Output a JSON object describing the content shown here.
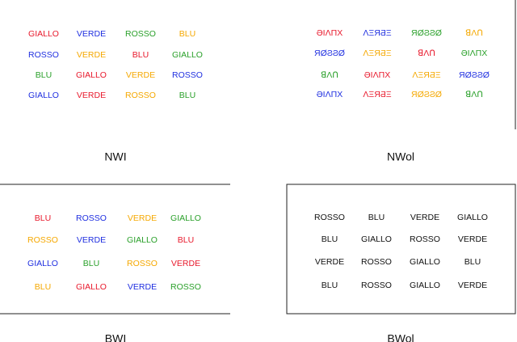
{
  "panels": [
    {
      "label": "NWI",
      "words": [
        [
          {
            "text": "GIALLO",
            "color": "#e8192c"
          },
          {
            "text": "VERDE",
            "color": "#1f2fe0"
          },
          {
            "text": "ROSSO",
            "color": "#2aa02a"
          },
          {
            "text": "BLU",
            "color": "#f5a800"
          }
        ],
        [
          {
            "text": "ROSSO",
            "color": "#1f2fe0"
          },
          {
            "text": "VERDE",
            "color": "#f5a800"
          },
          {
            "text": "BLU",
            "color": "#e8192c"
          },
          {
            "text": "GIALLO",
            "color": "#2aa02a"
          }
        ],
        [
          {
            "text": "BLU",
            "color": "#2aa02a"
          },
          {
            "text": "GIALLO",
            "color": "#e8192c"
          },
          {
            "text": "VERDE",
            "color": "#f5a800"
          },
          {
            "text": "ROSSO",
            "color": "#1f2fe0"
          }
        ],
        [
          {
            "text": "GIALLO",
            "color": "#1f2fe0"
          },
          {
            "text": "VERDE",
            "color": "#e8192c"
          },
          {
            "text": "ROSSO",
            "color": "#f5a800"
          },
          {
            "text": "BLU",
            "color": "#2aa02a"
          }
        ]
      ]
    },
    {
      "label": "NWol",
      "words": [
        [
          {
            "text": "ƏIΛΠX",
            "color": "#e8192c"
          },
          {
            "text": "ΛΞЯƋΞ",
            "color": "#1f2fe0"
          },
          {
            "text": "ЯØϨϨØ",
            "color": "#2aa02a"
          },
          {
            "text": "ꓭΛꓵ",
            "color": "#f5a800"
          }
        ],
        [
          {
            "text": "ЯØϨϨØ",
            "color": "#1f2fe0"
          },
          {
            "text": "ΛΞЯƋΞ",
            "color": "#f5a800"
          },
          {
            "text": "ꓭΛꓵ",
            "color": "#e8192c"
          },
          {
            "text": "ƏIΛΠX",
            "color": "#2aa02a"
          }
        ],
        [
          {
            "text": "ꓭΛꓵ",
            "color": "#2aa02a"
          },
          {
            "text": "ƏIΛΠX",
            "color": "#e8192c"
          },
          {
            "text": "ΛΞЯƋΞ",
            "color": "#f5a800"
          },
          {
            "text": "ЯØϨϨØ",
            "color": "#1f2fe0"
          }
        ],
        [
          {
            "text": "ƏIΛΠX",
            "color": "#1f2fe0"
          },
          {
            "text": "ΛΞЯƋΞ",
            "color": "#e8192c"
          },
          {
            "text": "ЯØϨϨØ",
            "color": "#f5a800"
          },
          {
            "text": "ꓭΛꓵ",
            "color": "#2aa02a"
          }
        ]
      ]
    },
    {
      "label": "BWI",
      "words": [
        [
          {
            "text": "BLU",
            "color": "#e8192c"
          },
          {
            "text": "ROSSO",
            "color": "#1f2fe0"
          },
          {
            "text": "VERDE",
            "color": "#f5a800"
          },
          {
            "text": "GIALLO",
            "color": "#2aa02a"
          }
        ],
        [
          {
            "text": "ROSSO",
            "color": "#f5a800"
          },
          {
            "text": "VERDE",
            "color": "#1f2fe0"
          },
          {
            "text": "GIALLO",
            "color": "#2aa02a"
          },
          {
            "text": "BLU",
            "color": "#e8192c"
          }
        ],
        [
          {
            "text": "GIALLO",
            "color": "#1f2fe0"
          },
          {
            "text": "BLU",
            "color": "#2aa02a"
          },
          {
            "text": "ROSSO",
            "color": "#f5a800"
          },
          {
            "text": "VERDE",
            "color": "#e8192c"
          }
        ],
        [
          {
            "text": "BLU",
            "color": "#f5a800"
          },
          {
            "text": "GIALLO",
            "color": "#e8192c"
          },
          {
            "text": "VERDE",
            "color": "#1f2fe0"
          },
          {
            "text": "ROSSO",
            "color": "#2aa02a"
          }
        ]
      ]
    },
    {
      "label": "BWol",
      "words": [
        [
          {
            "text": "ROSSO",
            "color": "#111111"
          },
          {
            "text": "BLU",
            "color": "#111111"
          },
          {
            "text": "VERDE",
            "color": "#111111"
          },
          {
            "text": "GIALLO",
            "color": "#111111"
          }
        ],
        [
          {
            "text": "BLU",
            "color": "#111111"
          },
          {
            "text": "GIALLO",
            "color": "#111111"
          },
          {
            "text": "ROSSO",
            "color": "#111111"
          },
          {
            "text": "VERDE",
            "color": "#111111"
          }
        ],
        [
          {
            "text": "VERDE",
            "color": "#111111"
          },
          {
            "text": "ROSSO",
            "color": "#111111"
          },
          {
            "text": "GIALLO",
            "color": "#111111"
          },
          {
            "text": "BLU",
            "color": "#111111"
          }
        ],
        [
          {
            "text": "BLU",
            "color": "#111111"
          },
          {
            "text": "ROSSO",
            "color": "#111111"
          },
          {
            "text": "GIALLO",
            "color": "#111111"
          },
          {
            "text": "VERDE",
            "color": "#111111"
          }
        ]
      ]
    }
  ]
}
